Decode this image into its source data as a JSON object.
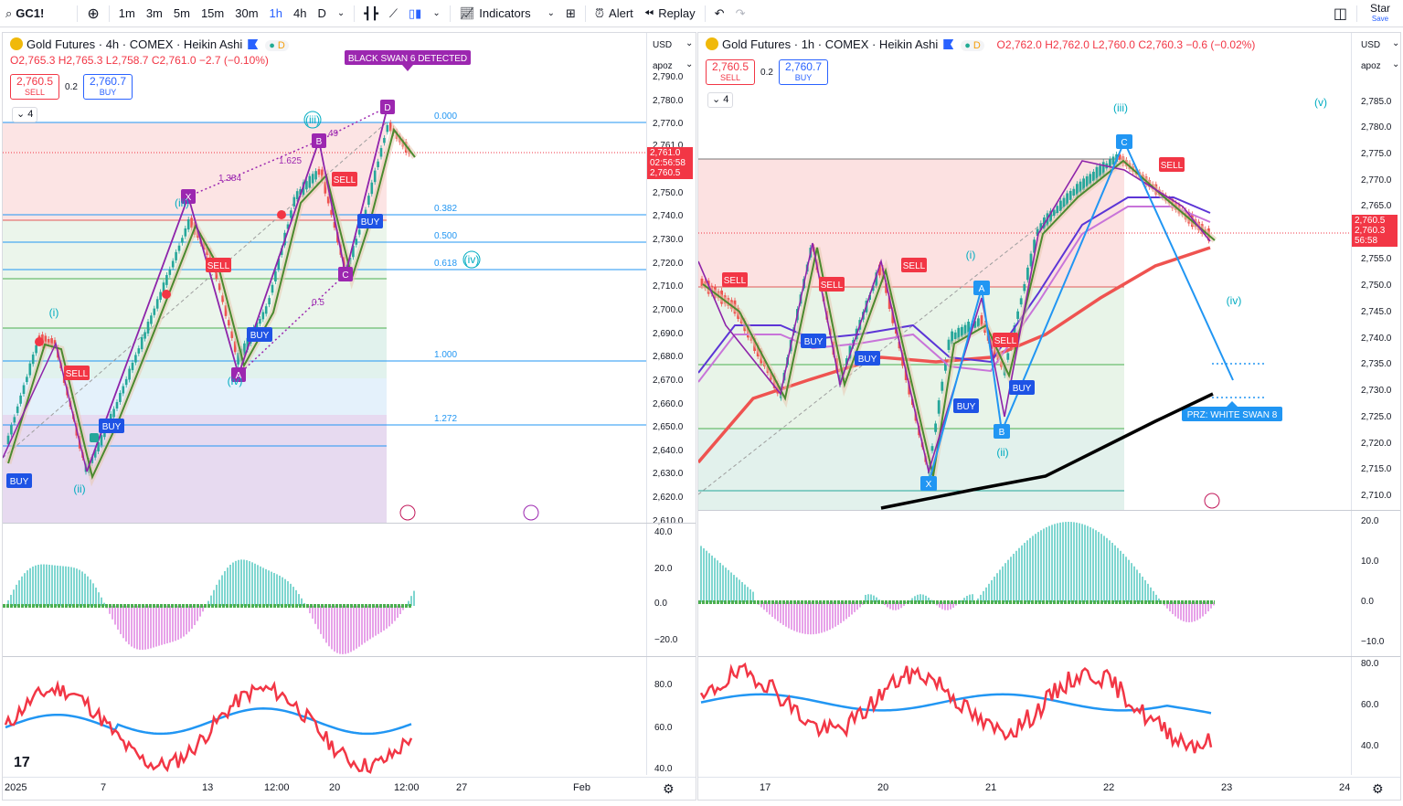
{
  "toolbar": {
    "symbol": "GC1!",
    "intervals": [
      "1m",
      "3m",
      "5m",
      "15m",
      "30m",
      "1h",
      "4h",
      "D"
    ],
    "active_interval": "1h",
    "indicators_label": "Indicators",
    "alert_label": "Alert",
    "replay_label": "Replay",
    "star_label": "Star",
    "save_label": "Save"
  },
  "left": {
    "legend_title": "Gold Futures · 4h · COMEX · Heikin Ashi",
    "d_badge": "D",
    "ohlc": {
      "o": "O2,765.3",
      "h": "H2,765.3",
      "l": "L2,758.7",
      "c": "C2,761.0",
      "chg": "−2.7 (−0.10%)"
    },
    "sell_price": "2,760.5",
    "sell_label": "SELL",
    "spread": "0.2",
    "buy_price": "2,760.7",
    "buy_label": "BUY",
    "collapse_count": "4",
    "currency": "USD",
    "scale_mode": "apoz",
    "banner": "BLACK SWAN 6 DETECTED",
    "price_ticks": [
      "2,790.0",
      "2,780.0",
      "2,770.0",
      "2,761.0",
      "2,750.0",
      "2,740.0",
      "2,730.0",
      "2,720.0",
      "2,710.0",
      "2,700.0",
      "2,690.0",
      "2,680.0",
      "2,670.0",
      "2,660.0",
      "2,650.0",
      "2,640.0",
      "2,630.0",
      "2,620.0",
      "2,610.0"
    ],
    "last_price": "2,761.0",
    "countdown": "02:56:58",
    "bid_price": "2,760.5",
    "fib_labels": [
      "0.000",
      "0.382",
      "0.500",
      "0.618",
      "1.000",
      "1.272"
    ],
    "harmonic_points": [
      "X",
      "A",
      "B",
      "C",
      "D"
    ],
    "ratio_labels": [
      "1.384",
      "1.625",
      "0.5",
      "49"
    ],
    "wave_labels": [
      "(i)",
      "(ii)",
      "(iii)",
      "(iv)",
      "(iv)",
      "(iii)"
    ],
    "signal_labels": [
      "BUY",
      "SELL",
      "BUY",
      "SELL",
      "BUY",
      "SELL",
      "BUY"
    ],
    "osc_ticks": [
      "40.0",
      "20.0",
      "0.0",
      "−20.0"
    ],
    "rsi_ticks": [
      "80.0",
      "60.0",
      "40.0"
    ],
    "x_ticks": [
      "2025",
      "7",
      "13",
      "12:00",
      "20",
      "12:00",
      "27",
      "Feb"
    ]
  },
  "right": {
    "legend_title": "Gold Futures · 1h · COMEX · Heikin Ashi",
    "d_badge": "D",
    "ohlc": {
      "o": "O2,762.0",
      "h": "H2,762.0",
      "l": "L2,760.0",
      "c": "C2,760.3",
      "chg": "−0.6 (−0.02%)"
    },
    "sell_price": "2,760.5",
    "sell_label": "SELL",
    "spread": "0.2",
    "buy_price": "2,760.7",
    "buy_label": "BUY",
    "collapse_count": "4",
    "currency": "USD",
    "scale_mode": "apoz",
    "price_ticks": [
      "2,785.0",
      "2,780.0",
      "2,775.0",
      "2,770.0",
      "2,765.0",
      "2,755.0",
      "2,750.0",
      "2,745.0",
      "2,740.0",
      "2,735.0",
      "2,730.0",
      "2,725.0",
      "2,720.0",
      "2,715.0",
      "2,710.0"
    ],
    "last_price": "2,760.5",
    "last_price2": "2,760.3",
    "countdown": "56:58",
    "harmonic_points": [
      "X",
      "A",
      "B",
      "C"
    ],
    "wave_labels": [
      "(i)",
      "(ii)",
      "(iii)",
      "(iv)",
      "(v)"
    ],
    "prz_label": "PRZ: WHITE SWAN 8",
    "signal_labels": [
      "SELL",
      "SELL",
      "SELL",
      "SELL",
      "BUY",
      "BUY",
      "BUY",
      "BUY",
      "SELL"
    ],
    "osc_ticks": [
      "20.0",
      "10.0",
      "0.0",
      "−10.0"
    ],
    "rsi_ticks": [
      "80.0",
      "60.0",
      "40.0"
    ],
    "x_ticks": [
      "17",
      "20",
      "21",
      "22",
      "23",
      "24"
    ]
  }
}
